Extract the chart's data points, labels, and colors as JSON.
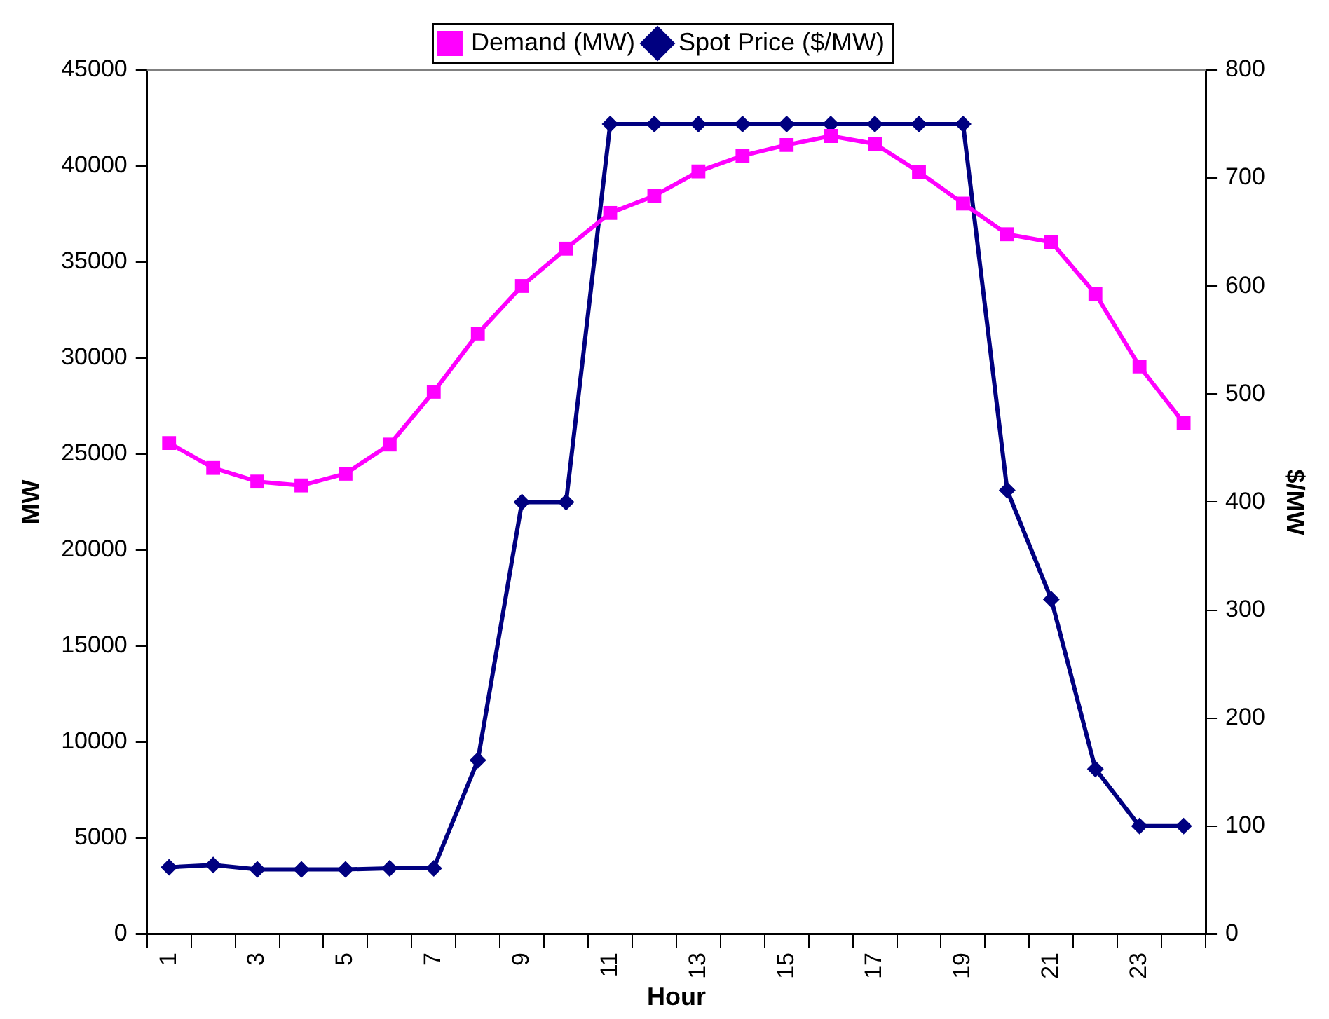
{
  "chart_data": {
    "type": "line",
    "xlabel": "Hour",
    "ylabel": "MW",
    "y2label": "$/MW",
    "categories": [
      "1",
      null,
      "3",
      null,
      "5",
      null,
      "7",
      null,
      "9",
      null,
      "11",
      null,
      "13",
      null,
      "15",
      null,
      "17",
      null,
      "19",
      null,
      "21",
      null,
      "23",
      null
    ],
    "series": [
      {
        "name": "Demand (MW)",
        "color": "#ff00ff",
        "marker": "square",
        "values": [
          25580,
          24280,
          23570,
          23370,
          23980,
          25500,
          28250,
          31280,
          33760,
          35700,
          37560,
          38450,
          39720,
          40540,
          41100,
          41570,
          41160,
          39690,
          38050,
          36450,
          36040,
          33350,
          29570,
          26630
        ]
      },
      {
        "name": "Spot Price ($/MW)",
        "color": "#000080",
        "marker": "diamond",
        "axis": "y2",
        "values": [
          62,
          64,
          60,
          60,
          60,
          61,
          61,
          161,
          400,
          400,
          750,
          750,
          750,
          750,
          750,
          750,
          750,
          750,
          750,
          411,
          310,
          153,
          100,
          100
        ]
      }
    ],
    "ylim": [
      0,
      45000
    ],
    "yticks": [
      0,
      5000,
      10000,
      15000,
      20000,
      25000,
      30000,
      35000,
      40000,
      45000
    ],
    "y2lim": [
      0,
      800
    ],
    "y2ticks": [
      0,
      100,
      200,
      300,
      400,
      500,
      600,
      700,
      800
    ],
    "grid": false,
    "legend": "top",
    "line_style": "solid"
  }
}
